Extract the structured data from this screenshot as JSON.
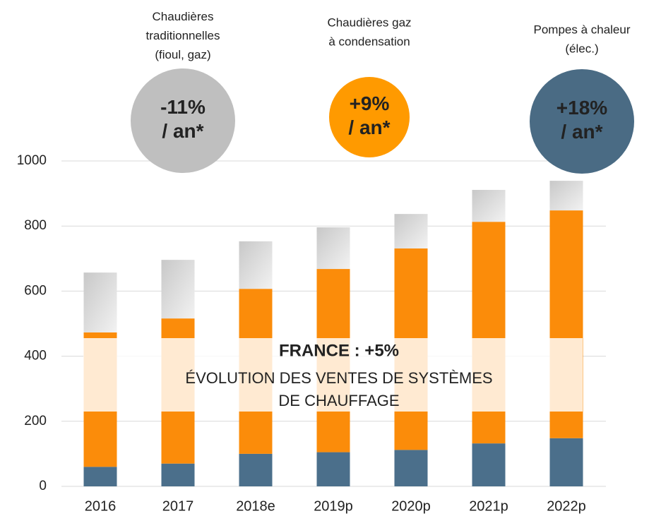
{
  "chart_data": {
    "type": "stacked_bar",
    "title": "FRANCE : +5%",
    "subtitle": "ÉVOLUTION DES VENTES DE SYSTÈMES\nDE CHAUFFAGE",
    "categories": [
      "2016",
      "2017",
      "2018e",
      "2019p",
      "2020p",
      "2021p",
      "2022p"
    ],
    "series": [
      {
        "name": "Pompes à chaleur\n(élec.)",
        "color": "#4b6f8b",
        "bubble_color": "#4a6b84",
        "annotation": "+18%\n/ an*",
        "values": [
          60,
          70,
          100,
          105,
          112,
          132,
          148
        ]
      },
      {
        "name": "Chaudières gaz\nà condensation",
        "color": "#fb8c0a",
        "bubble_color": "#ff9a00",
        "annotation": "+9%\n/ an*",
        "values": [
          413,
          446,
          507,
          563,
          619,
          681,
          700
        ]
      },
      {
        "name": "Chaudières\ntraditionnelles\n(fioul, gaz)",
        "color": "#d9d9d9",
        "bubble_color": "#bfbfbf",
        "annotation": "-11%\n/ an*",
        "values": [
          184,
          180,
          146,
          128,
          106,
          98,
          91
        ]
      }
    ],
    "ylim": [
      0,
      1000
    ],
    "yticks": [
      0,
      200,
      400,
      600,
      800,
      1000
    ],
    "grid": true
  }
}
